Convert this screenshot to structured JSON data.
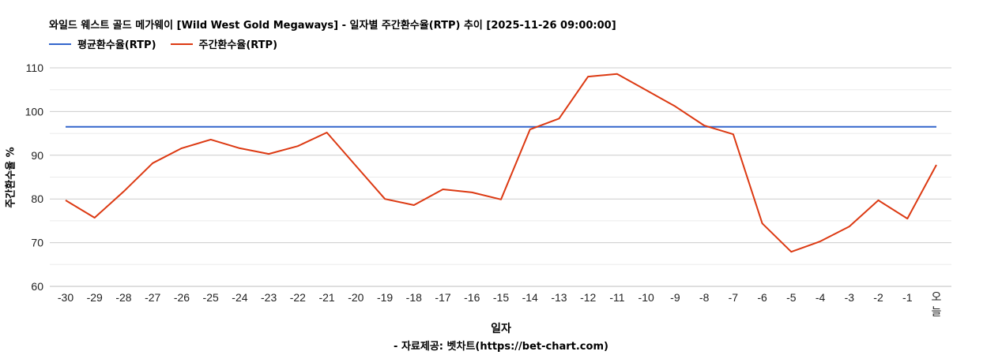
{
  "chart": {
    "title": "와일드 웨스트 골드 메가웨이 [Wild West Gold Megaways] - 일자별 주간환수율(RTP) 추이 [2025-11-26 09:00:00]",
    "xlabel": "일자",
    "ylabel": "주간환수율 %",
    "source": "- 자료제공: 벳차트(https://bet-chart.com)"
  },
  "legend": [
    {
      "label": "평균환수율(RTP)",
      "color": "#3366cc"
    },
    {
      "label": "주간환수율(RTP)",
      "color": "#dc3912"
    }
  ],
  "chart_data": {
    "type": "line",
    "title": "와일드 웨스트 골드 메가웨이 [Wild West Gold Megaways] - 일자별 주간환수율(RTP) 추이 [2025-11-26 09:00:00]",
    "xlabel": "일자",
    "ylabel": "주간환수율 %",
    "ylim": [
      60,
      110
    ],
    "yticks": [
      60,
      70,
      80,
      90,
      100,
      110
    ],
    "grid": true,
    "legend_position": "top",
    "categories": [
      "-30",
      "-29",
      "-28",
      "-27",
      "-26",
      "-25",
      "-24",
      "-23",
      "-22",
      "-21",
      "-20",
      "-19",
      "-18",
      "-17",
      "-16",
      "-15",
      "-14",
      "-13",
      "-12",
      "-11",
      "-10",
      "-9",
      "-8",
      "-7",
      "-6",
      "-5",
      "-4",
      "-3",
      "-2",
      "-1",
      "오늘"
    ],
    "series": [
      {
        "name": "평균환수율(RTP)",
        "color": "#3366cc",
        "values": [
          96.5,
          96.5,
          96.5,
          96.5,
          96.5,
          96.5,
          96.5,
          96.5,
          96.5,
          96.5,
          96.5,
          96.5,
          96.5,
          96.5,
          96.5,
          96.5,
          96.5,
          96.5,
          96.5,
          96.5,
          96.5,
          96.5,
          96.5,
          96.5,
          96.5,
          96.5,
          96.5,
          96.5,
          96.5,
          96.5,
          96.5
        ]
      },
      {
        "name": "주간환수율(RTP)",
        "color": "#dc3912",
        "values": [
          79.7,
          75.7,
          81.7,
          88.2,
          91.6,
          93.6,
          91.6,
          90.3,
          92.1,
          95.2,
          87.6,
          80.0,
          78.6,
          82.2,
          81.5,
          79.9,
          95.9,
          98.4,
          108.0,
          108.6,
          104.9,
          101.2,
          96.8,
          94.8,
          74.4,
          67.9,
          70.3,
          73.7,
          79.7,
          75.5,
          87.8
        ]
      }
    ]
  }
}
